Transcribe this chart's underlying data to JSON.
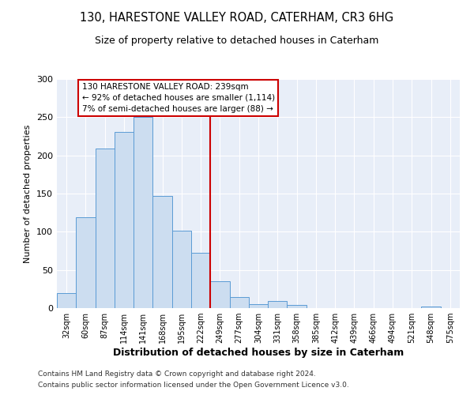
{
  "title": "130, HARESTONE VALLEY ROAD, CATERHAM, CR3 6HG",
  "subtitle": "Size of property relative to detached houses in Caterham",
  "xlabel": "Distribution of detached houses by size in Caterham",
  "ylabel": "Number of detached properties",
  "bin_labels": [
    "32sqm",
    "60sqm",
    "87sqm",
    "114sqm",
    "141sqm",
    "168sqm",
    "195sqm",
    "222sqm",
    "249sqm",
    "277sqm",
    "304sqm",
    "331sqm",
    "358sqm",
    "385sqm",
    "412sqm",
    "439sqm",
    "466sqm",
    "494sqm",
    "521sqm",
    "548sqm",
    "575sqm"
  ],
  "bar_values": [
    20,
    119,
    209,
    231,
    250,
    147,
    101,
    72,
    35,
    15,
    5,
    9,
    4,
    0,
    0,
    0,
    0,
    0,
    0,
    2,
    0
  ],
  "bar_color": "#ccddf0",
  "bar_edge_color": "#5b9bd5",
  "vline_x": 8,
  "vline_color": "#cc0000",
  "annotation_title": "130 HARESTONE VALLEY ROAD: 239sqm",
  "annotation_line1": "← 92% of detached houses are smaller (1,114)",
  "annotation_line2": "7% of semi-detached houses are larger (88) →",
  "annotation_box_color": "#cc0000",
  "ylim": [
    0,
    300
  ],
  "yticks": [
    0,
    50,
    100,
    150,
    200,
    250,
    300
  ],
  "footer1": "Contains HM Land Registry data © Crown copyright and database right 2024.",
  "footer2": "Contains public sector information licensed under the Open Government Licence v3.0.",
  "bg_color": "#ffffff",
  "plot_bg_color": "#e8eef8",
  "grid_color": "#ffffff"
}
